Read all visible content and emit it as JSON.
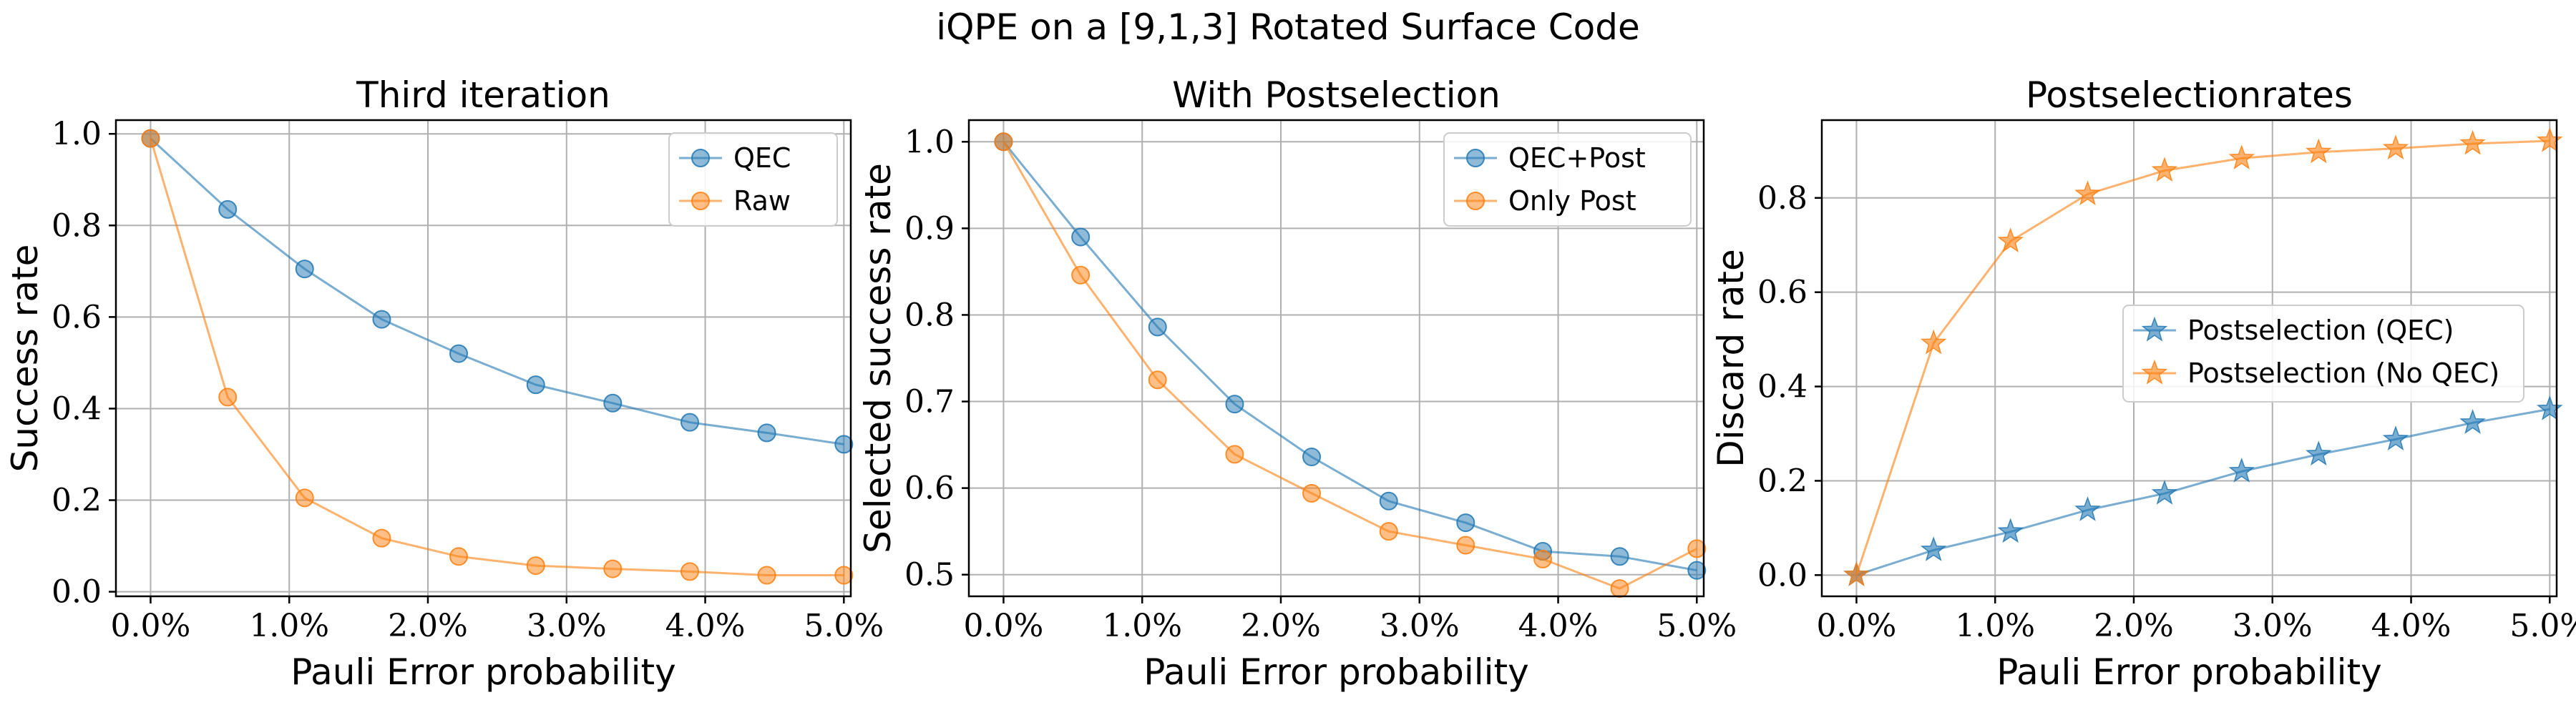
{
  "suptitle": "iQPE on a [9,1,3] Rotated Surface Code",
  "colors": {
    "blue": "#1f77b4",
    "orange": "#ff7f0e"
  },
  "chart_data": [
    {
      "type": "line",
      "title": "Third iteration",
      "xlabel": "Pauli Error probability",
      "ylabel": "Success rate",
      "xlim": [
        -0.0025,
        0.0505
      ],
      "ylim": [
        -0.01,
        1.03
      ],
      "xticks": [
        0,
        0.01,
        0.02,
        0.03,
        0.04,
        0.05
      ],
      "xtick_labels": [
        "0.0%",
        "1.0%",
        "2.0%",
        "3.0%",
        "4.0%",
        "5.0%"
      ],
      "yticks": [
        0.0,
        0.2,
        0.4,
        0.6,
        0.8,
        1.0
      ],
      "ytick_labels": [
        "0.0",
        "0.2",
        "0.4",
        "0.6",
        "0.8",
        "1.0"
      ],
      "grid": true,
      "legend_position": "top-right",
      "x": [
        0,
        0.00556,
        0.01111,
        0.01667,
        0.02222,
        0.02778,
        0.03333,
        0.03889,
        0.04444,
        0.05
      ],
      "series": [
        {
          "name": "QEC",
          "color": "#1f77b4",
          "marker": "circle",
          "values": [
            0.99,
            0.835,
            0.705,
            0.595,
            0.52,
            0.452,
            0.412,
            0.37,
            0.347,
            0.322
          ]
        },
        {
          "name": "Raw",
          "color": "#ff7f0e",
          "marker": "circle",
          "values": [
            0.99,
            0.425,
            0.205,
            0.117,
            0.077,
            0.057,
            0.05,
            0.044,
            0.036,
            0.036
          ]
        }
      ]
    },
    {
      "type": "line",
      "title": "With Postselection",
      "xlabel": "Pauli Error probability",
      "ylabel": "Selected success rate",
      "xlim": [
        -0.0025,
        0.0505
      ],
      "ylim": [
        0.475,
        1.025
      ],
      "xticks": [
        0,
        0.01,
        0.02,
        0.03,
        0.04,
        0.05
      ],
      "xtick_labels": [
        "0.0%",
        "1.0%",
        "2.0%",
        "3.0%",
        "4.0%",
        "5.0%"
      ],
      "yticks": [
        0.5,
        0.6,
        0.7,
        0.8,
        0.9,
        1.0
      ],
      "ytick_labels": [
        "0.5",
        "0.6",
        "0.7",
        "0.8",
        "0.9",
        "1.0"
      ],
      "grid": true,
      "legend_position": "top-right",
      "x": [
        0,
        0.00556,
        0.01111,
        0.01667,
        0.02222,
        0.02778,
        0.03333,
        0.03889,
        0.04444,
        0.05
      ],
      "series": [
        {
          "name": "QEC+Post",
          "color": "#1f77b4",
          "marker": "circle",
          "values": [
            1.0,
            0.89,
            0.786,
            0.697,
            0.636,
            0.585,
            0.56,
            0.527,
            0.521,
            0.505
          ]
        },
        {
          "name": "Only Post",
          "color": "#ff7f0e",
          "marker": "circle",
          "values": [
            1.0,
            0.846,
            0.725,
            0.639,
            0.594,
            0.55,
            0.534,
            0.518,
            0.484,
            0.53
          ]
        }
      ]
    },
    {
      "type": "line",
      "title": "Postselectionrates",
      "xlabel": "Pauli Error probability",
      "ylabel": "Discard rate",
      "xlim": [
        -0.0025,
        0.0505
      ],
      "ylim": [
        -0.045,
        0.965
      ],
      "xticks": [
        0,
        0.01,
        0.02,
        0.03,
        0.04,
        0.05
      ],
      "xtick_labels": [
        "0.0%",
        "1.0%",
        "2.0%",
        "3.0%",
        "4.0%",
        "5.0%"
      ],
      "yticks": [
        0.0,
        0.2,
        0.4,
        0.6,
        0.8
      ],
      "ytick_labels": [
        "0.0",
        "0.2",
        "0.4",
        "0.6",
        "0.8"
      ],
      "grid": true,
      "legend_position": "center-right",
      "x": [
        0,
        0.00556,
        0.01111,
        0.01667,
        0.02222,
        0.02778,
        0.03333,
        0.03889,
        0.04444,
        0.05
      ],
      "series": [
        {
          "name": "Postselection (QEC)",
          "color": "#1f77b4",
          "marker": "star",
          "values": [
            0.0,
            0.053,
            0.092,
            0.138,
            0.173,
            0.22,
            0.256,
            0.288,
            0.323,
            0.352
          ]
        },
        {
          "name": "Postselection (No QEC)",
          "color": "#ff7f0e",
          "marker": "star",
          "values": [
            0.0,
            0.492,
            0.708,
            0.808,
            0.858,
            0.884,
            0.897,
            0.905,
            0.915,
            0.921
          ]
        }
      ]
    }
  ]
}
